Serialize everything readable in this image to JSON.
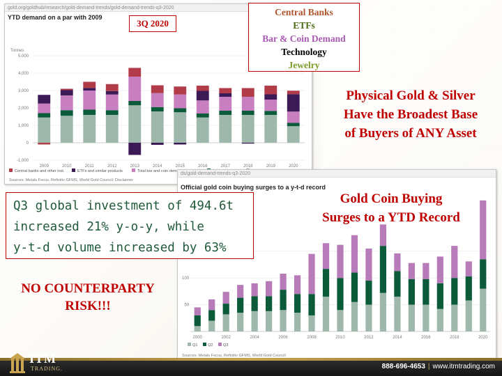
{
  "slide": {
    "legend_items": [
      {
        "label": "Central Banks",
        "color": "#c0504d"
      },
      {
        "label": "ETFs",
        "color": "#5a7a1f"
      },
      {
        "label": "Bar & Coin Demand",
        "color": "#a75ab0"
      },
      {
        "label": "Technology",
        "color": "#000000"
      },
      {
        "label": "Jewelry",
        "color": "#7a9a2a"
      }
    ],
    "badge": "3Q 2020",
    "headline_broadest": [
      "Physical Gold & Silver",
      "Have the Broadest Base",
      "of Buyers of ANY Asset"
    ],
    "headline_coin": [
      "Gold Coin Buying",
      "Surges to a YTD Record"
    ],
    "quote_lines": [
      "Q3 global investment of 494.6t",
      "increased 21% y-o-y, while",
      "y-t-d volume increased by 63%"
    ],
    "headline_risk": [
      "NO COUNTERPARTY",
      "RISK!!!"
    ],
    "footer": {
      "logo": "ITM",
      "logo_sub": "TRADING.",
      "phone": "888-696-4653",
      "separator": "|",
      "site": "www.itmtrading.com"
    }
  },
  "chart_data": [
    {
      "type": "bar",
      "stacked": true,
      "url": "gold.org/goldhub/research/gold-demand-trends/gold-demand-trends-q3-2020",
      "title": "YTD demand on a par with 2009",
      "ylabel": "Tonnes",
      "ylim": [
        -1000,
        5000
      ],
      "yticks": [
        "-1,000",
        "0",
        "1,000",
        "2,000",
        "3,000",
        "4,000",
        "5,000"
      ],
      "ytick_values": [
        -1000,
        0,
        1000,
        2000,
        3000,
        4000,
        5000
      ],
      "categories": [
        "2009",
        "2010",
        "2011",
        "2012",
        "2013",
        "2014",
        "2015",
        "2016",
        "2017",
        "2018",
        "2019",
        "2020"
      ],
      "series": [
        {
          "name": "Jewellery",
          "color": "#9fb8ac",
          "values": [
            1450,
            1550,
            1600,
            1600,
            2150,
            1800,
            1750,
            1450,
            1600,
            1600,
            1600,
            950
          ]
        },
        {
          "name": "Technology",
          "color": "#0b5a3a",
          "values": [
            250,
            320,
            300,
            270,
            250,
            250,
            230,
            230,
            240,
            240,
            230,
            190
          ]
        },
        {
          "name": "Total bar and coin demand",
          "color": "#c77fbf",
          "values": [
            550,
            850,
            1100,
            900,
            1400,
            800,
            800,
            750,
            800,
            800,
            650,
            650
          ]
        },
        {
          "name": "ETFs and similar products",
          "color": "#3b1a56",
          "values": [
            500,
            300,
            150,
            200,
            -700,
            -120,
            -100,
            550,
            200,
            -50,
            300,
            1000
          ]
        },
        {
          "name": "Central banks and other inst.",
          "color": "#b23b4a",
          "values": [
            -100,
            80,
            350,
            400,
            500,
            450,
            450,
            300,
            300,
            500,
            500,
            200
          ]
        }
      ],
      "source": "Sources: Metals Focus, Refinitiv GFMS, World Gold Council; Disclaimer"
    },
    {
      "type": "bar",
      "stacked": true,
      "url": "ds/gold-demand-trends-q3-2020",
      "title": "Official gold coin buying surges to a y-t-d record",
      "ylim": [
        0,
        250
      ],
      "yticks": [
        "50",
        "100",
        "150"
      ],
      "ytick_values": [
        50,
        100,
        150
      ],
      "xtick_labels": [
        "2000",
        "2002",
        "2004",
        "2006",
        "2008",
        "2010",
        "2012",
        "2014",
        "2016",
        "2018",
        "2020"
      ],
      "categories": [
        "2000",
        "2001",
        "2002",
        "2003",
        "2004",
        "2005",
        "2006",
        "2007",
        "2008",
        "2009",
        "2010",
        "2011",
        "2012",
        "2013",
        "2014",
        "2015",
        "2016",
        "2017",
        "2018",
        "2019",
        "2020"
      ],
      "series": [
        {
          "name": "Q1",
          "color": "#9fb8ac",
          "values": [
            10,
            20,
            32,
            35,
            38,
            38,
            40,
            35,
            30,
            65,
            40,
            55,
            50,
            72,
            65,
            50,
            50,
            42,
            50,
            58,
            80
          ]
        },
        {
          "name": "Q2",
          "color": "#0b5a3a",
          "values": [
            20,
            20,
            20,
            28,
            28,
            28,
            38,
            35,
            40,
            52,
            60,
            55,
            45,
            88,
            48,
            48,
            48,
            48,
            50,
            45,
            55
          ]
        },
        {
          "name": "Q3",
          "color": "#b77bb9",
          "values": [
            15,
            20,
            22,
            24,
            24,
            28,
            30,
            35,
            75,
            48,
            62,
            70,
            60,
            40,
            33,
            30,
            30,
            50,
            60,
            28,
            110
          ]
        }
      ],
      "legend": [
        "Q1",
        "Q2",
        "Q3"
      ],
      "source": "Sources: Metals Focus, Refinitiv GFMS, World Gold Council"
    }
  ]
}
